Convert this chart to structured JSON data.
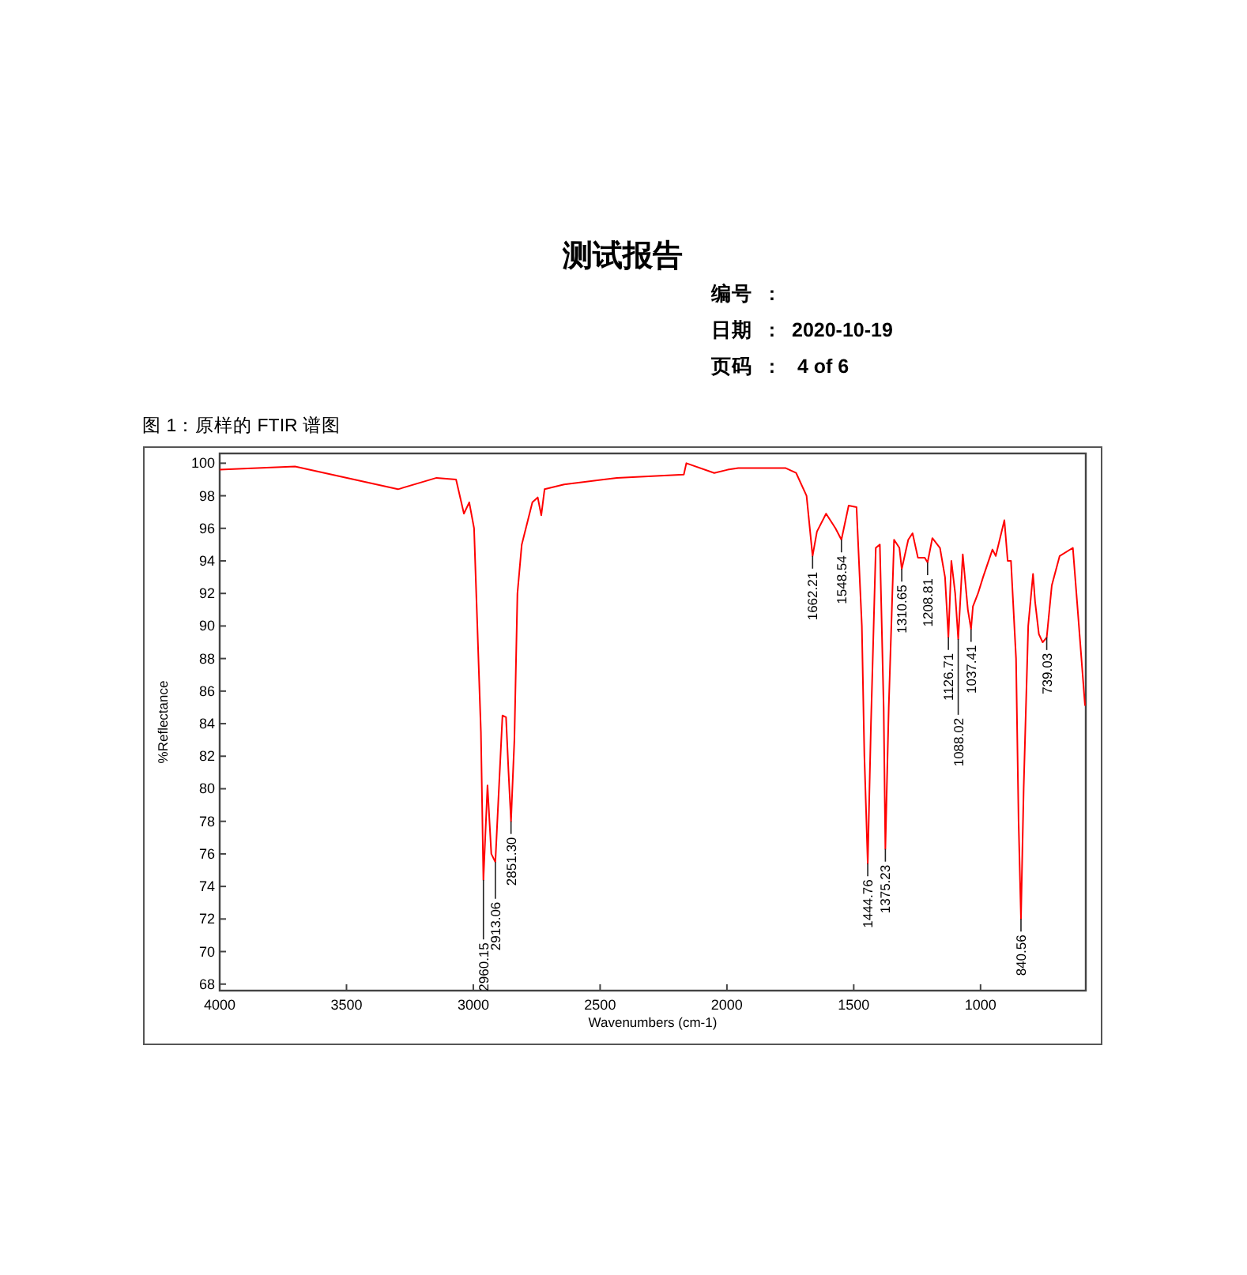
{
  "chart_data": {
    "type": "line",
    "title": "测试报告",
    "subtitle": "图 1：原样的 FTIR 谱图",
    "xlabel": "Wavenumbers (cm-1)",
    "ylabel": "%Reflectance",
    "xlim": [
      4000,
      585
    ],
    "ylim": [
      67.6,
      100.6
    ],
    "xticks": [
      4000,
      3500,
      3000,
      2500,
      2000,
      1500,
      1000
    ],
    "yticks": [
      68,
      70,
      72,
      74,
      76,
      78,
      80,
      82,
      84,
      86,
      88,
      90,
      92,
      94,
      96,
      98,
      100
    ],
    "grid": false,
    "series": [
      {
        "color": "#ff0000",
        "x": [
          4000,
          3703,
          3297,
          3145,
          3068,
          3037,
          3016,
          2997,
          2970,
          2960.15,
          2944,
          2929,
          2913.06,
          2885,
          2871,
          2861,
          2851.3,
          2838,
          2826,
          2809,
          2767,
          2746,
          2732,
          2719,
          2642,
          2434,
          2170,
          2160,
          2050,
          1997,
          1955,
          1768,
          1727,
          1686,
          1662.21,
          1645,
          1609,
          1572,
          1548.54,
          1520,
          1489,
          1468,
          1458,
          1444.76,
          1432,
          1413,
          1397,
          1382,
          1375.23,
          1362,
          1341,
          1320,
          1310.65,
          1285,
          1268,
          1247,
          1220,
          1208.81,
          1190,
          1160,
          1140,
          1126.71,
          1115,
          1100,
          1088.02,
          1070,
          1050,
          1037.41,
          1030,
          1010,
          990,
          953,
          940,
          906,
          893,
          880,
          860,
          850,
          840.56,
          830,
          812,
          793,
          785,
          770,
          755,
          739.03,
          719,
          688,
          636,
          617,
          588
        ],
        "values": [
          99.6,
          99.8,
          98.4,
          99.1,
          99.0,
          96.9,
          97.6,
          96.0,
          83.5,
          74.4,
          80.2,
          76.0,
          75.5,
          84.5,
          84.4,
          81.0,
          78.0,
          83.0,
          92.0,
          95.0,
          97.6,
          97.9,
          96.8,
          98.4,
          98.7,
          99.1,
          99.3,
          100.0,
          99.4,
          99.6,
          99.7,
          99.7,
          99.4,
          98.0,
          94.3,
          95.8,
          96.9,
          96.0,
          95.3,
          97.4,
          97.3,
          90.0,
          82.0,
          75.4,
          84.0,
          94.8,
          95.0,
          85.0,
          76.3,
          85.0,
          95.3,
          94.8,
          93.5,
          95.3,
          95.7,
          94.2,
          94.2,
          93.9,
          95.4,
          94.8,
          93.0,
          89.3,
          94.0,
          92.0,
          89.2,
          94.4,
          91.0,
          89.8,
          91.2,
          92.0,
          93.0,
          94.7,
          94.3,
          96.5,
          94.0,
          94.0,
          88.0,
          78.0,
          72.0,
          80.0,
          90.0,
          93.2,
          91.5,
          89.5,
          89.0,
          89.3,
          92.5,
          94.3,
          94.8,
          91.0,
          85.1
        ]
      }
    ],
    "annotations": [
      "编号   :",
      "日期   :   2020-10-19",
      "页码   :    4 of 6",
      {
        "text": "2960.15",
        "x": 2960.15,
        "y": 74.4
      },
      {
        "text": "2913.06",
        "x": 2913.06,
        "y": 75.5
      },
      {
        "text": "2851.30",
        "x": 2851.3,
        "y": 78.0
      },
      {
        "text": "1662.21",
        "x": 1662.21,
        "y": 94.3
      },
      {
        "text": "1548.54",
        "x": 1548.54,
        "y": 95.3
      },
      {
        "text": "1444.76",
        "x": 1444.76,
        "y": 75.4
      },
      {
        "text": "1375.23",
        "x": 1375.23,
        "y": 76.3
      },
      {
        "text": "1310.65",
        "x": 1310.65,
        "y": 93.5
      },
      {
        "text": "1208.81",
        "x": 1208.81,
        "y": 93.9
      },
      {
        "text": "1126.71",
        "x": 1126.71,
        "y": 89.3
      },
      {
        "text": "1088.02",
        "x": 1088.02,
        "y": 89.2
      },
      {
        "text": "1037.41",
        "x": 1037.41,
        "y": 89.8
      },
      {
        "text": "840.56",
        "x": 840.56,
        "y": 72.0
      },
      {
        "text": "739.03",
        "x": 739.03,
        "y": 89.3
      }
    ]
  }
}
